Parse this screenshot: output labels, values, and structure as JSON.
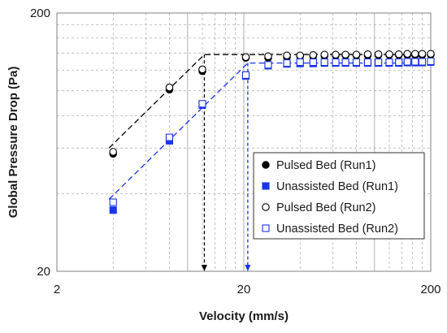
{
  "chart_data": {
    "type": "scatter",
    "title": "",
    "xlabel": "Velocity (mm/s)",
    "ylabel": "Global Pressure Drop (Pa)",
    "xscale": "log",
    "yscale": "log",
    "xlim": [
      2,
      200
    ],
    "ylim": [
      20,
      200
    ],
    "xticks": [
      2,
      20,
      200
    ],
    "yticks": [
      20,
      200
    ],
    "grid": true,
    "legend_position": "lower-right",
    "series": [
      {
        "name": "Pulsed Bed (Run1)",
        "marker": "circle",
        "filled": true,
        "color": "#000000",
        "x": [
          4.0,
          8.0,
          12.0,
          20.5,
          27.0,
          34.0,
          40.0,
          47.0,
          54.0,
          62.0,
          70.0,
          80.0,
          92.0,
          105.0,
          120.0,
          135.0,
          150.0,
          165.0,
          180.0,
          200.0
        ],
        "y": [
          57.0,
          101.0,
          119.0,
          134.0,
          134.0,
          135.0,
          136.0,
          136.0,
          136.5,
          137.0,
          137.0,
          137.0,
          137.0,
          137.5,
          137.5,
          137.5,
          137.5,
          137.5,
          137.5,
          138.0
        ]
      },
      {
        "name": "Unassisted Bed (Run1)",
        "marker": "square",
        "filled": true,
        "color": "#1a35e6",
        "x": [
          4.0,
          8.0,
          12.0,
          20.5,
          27.0,
          34.0,
          40.0,
          47.0,
          54.0,
          62.0,
          70.0,
          80.0,
          92.0,
          105.0,
          120.0,
          135.0,
          150.0,
          165.0,
          180.0,
          200.0
        ],
        "y": [
          34.5,
          64.0,
          88.0,
          114.0,
          125.0,
          127.0,
          127.5,
          127.5,
          128.0,
          128.0,
          128.0,
          128.0,
          128.0,
          128.0,
          128.0,
          128.0,
          128.5,
          128.5,
          128.5,
          129.0
        ]
      },
      {
        "name": "Pulsed Bed (Run2)",
        "marker": "circle",
        "filled": false,
        "color": "#000000",
        "x": [
          4.0,
          8.0,
          12.0,
          20.5,
          27.0,
          34.0,
          40.0,
          47.0,
          54.0,
          62.0,
          70.0,
          80.0,
          92.0,
          105.0,
          120.0,
          135.0,
          150.0,
          165.0,
          180.0,
          200.0
        ],
        "y": [
          58.0,
          103.0,
          121.0,
          135.0,
          136.0,
          137.0,
          137.0,
          137.5,
          138.0,
          138.0,
          138.0,
          138.0,
          138.5,
          138.5,
          138.5,
          138.5,
          139.0,
          139.0,
          139.0,
          139.0
        ]
      },
      {
        "name": "Unassisted Bed (Run2)",
        "marker": "square",
        "filled": false,
        "color": "#1a35e6",
        "x": [
          4.0,
          8.0,
          12.0,
          20.5,
          27.0,
          34.0,
          40.0,
          47.0,
          54.0,
          62.0,
          70.0,
          80.0,
          92.0,
          105.0,
          120.0,
          135.0,
          150.0,
          165.0,
          180.0,
          200.0
        ],
        "y": [
          37.0,
          66.0,
          89.0,
          115.0,
          126.0,
          128.0,
          129.0,
          129.0,
          129.0,
          129.0,
          129.0,
          129.0,
          129.0,
          129.0,
          129.0,
          129.0,
          129.5,
          129.5,
          129.5,
          130.0
        ]
      }
    ],
    "fit_lines": [
      {
        "for": "Pulsed Bed",
        "color": "#000000",
        "dash": true,
        "points": [
          [
            3.8,
            60.0
          ],
          [
            12.3,
            138.0
          ],
          [
            200.0,
            138.0
          ]
        ]
      },
      {
        "for": "Unassisted Bed",
        "color": "#1a35e6",
        "dash": true,
        "points": [
          [
            3.8,
            38.0
          ],
          [
            21.0,
            128.0
          ],
          [
            200.0,
            128.0
          ]
        ]
      }
    ],
    "reference_arrows": [
      {
        "color": "#000000",
        "x": 12.3,
        "from_y": 138.0,
        "to_y": 20.0
      },
      {
        "color": "#1a35e6",
        "x": 21.0,
        "from_y": 128.0,
        "to_y": 20.0
      }
    ]
  }
}
